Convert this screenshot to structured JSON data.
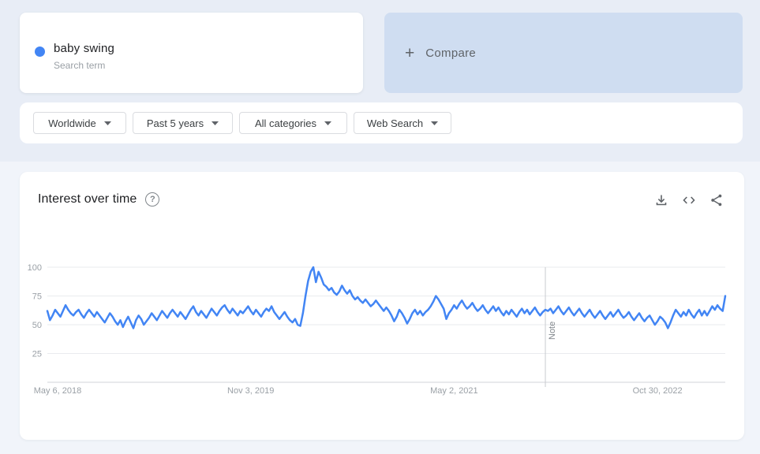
{
  "page_title": "Google Trends explore",
  "term_card": {
    "term": "baby swing",
    "type_label": "Search term",
    "dot_color": "#4285f4"
  },
  "compare_card": {
    "plus": "+",
    "label": "Compare",
    "bg_color": "#cfddf1"
  },
  "filters": [
    {
      "label": "Worldwide"
    },
    {
      "label": "Past 5 years"
    },
    {
      "label": "All categories"
    },
    {
      "label": "Web Search"
    }
  ],
  "chart_card": {
    "title": "Interest over time",
    "help_icon": "help-icon",
    "actions": [
      {
        "icon": "download-icon"
      },
      {
        "icon": "embed-icon"
      },
      {
        "icon": "share-icon"
      }
    ]
  },
  "chart_data": {
    "type": "line",
    "title": "Interest over time",
    "x_unit": "weekly",
    "x_tick_labels": [
      "May 6, 2018",
      "Nov 3, 2019",
      "May 2, 2021",
      "Oct 30, 2022"
    ],
    "x_tick_indices": [
      0,
      78,
      156,
      234
    ],
    "y_ticks": [
      25,
      50,
      75,
      100
    ],
    "ylim": [
      0,
      100
    ],
    "grid": true,
    "legend_position": "none",
    "note_marker": {
      "index": 191,
      "label": "Note"
    },
    "line_color": "#4285f4",
    "grid_color": "#e9ebee",
    "axis_color": "#dadce0",
    "tick_label_color": "#9aa0a6",
    "series": [
      {
        "name": "baby swing",
        "values": [
          62,
          54,
          58,
          63,
          60,
          57,
          62,
          67,
          63,
          60,
          58,
          61,
          63,
          59,
          56,
          60,
          63,
          60,
          57,
          61,
          58,
          55,
          52,
          56,
          60,
          57,
          53,
          50,
          54,
          48,
          53,
          57,
          52,
          47,
          54,
          58,
          55,
          50,
          53,
          56,
          60,
          57,
          54,
          58,
          62,
          59,
          56,
          60,
          63,
          60,
          57,
          61,
          58,
          55,
          59,
          63,
          66,
          61,
          58,
          62,
          59,
          56,
          60,
          64,
          61,
          58,
          62,
          65,
          67,
          63,
          60,
          64,
          61,
          58,
          62,
          60,
          63,
          66,
          62,
          59,
          63,
          60,
          57,
          61,
          64,
          62,
          66,
          61,
          58,
          55,
          58,
          61,
          57,
          54,
          52,
          55,
          50,
          49,
          60,
          75,
          88,
          96,
          100,
          87,
          96,
          91,
          85,
          83,
          80,
          82,
          78,
          76,
          79,
          84,
          80,
          77,
          80,
          75,
          72,
          74,
          71,
          69,
          72,
          69,
          66,
          68,
          71,
          68,
          65,
          62,
          65,
          62,
          58,
          53,
          57,
          63,
          60,
          56,
          51,
          55,
          60,
          63,
          59,
          62,
          58,
          61,
          63,
          66,
          70,
          75,
          72,
          68,
          64,
          55,
          60,
          63,
          67,
          64,
          68,
          71,
          67,
          64,
          66,
          69,
          65,
          62,
          64,
          67,
          63,
          60,
          63,
          66,
          62,
          65,
          61,
          58,
          62,
          59,
          63,
          60,
          57,
          61,
          64,
          60,
          63,
          59,
          62,
          65,
          61,
          58,
          61,
          63,
          62,
          64,
          60,
          63,
          66,
          62,
          59,
          62,
          65,
          61,
          58,
          61,
          64,
          60,
          57,
          60,
          63,
          59,
          56,
          59,
          62,
          58,
          55,
          58,
          61,
          57,
          60,
          63,
          59,
          56,
          58,
          61,
          57,
          54,
          57,
          60,
          56,
          53,
          56,
          58,
          54,
          50,
          53,
          57,
          55,
          52,
          47,
          52,
          58,
          63,
          60,
          57,
          61,
          58,
          63,
          59,
          56,
          60,
          63,
          58,
          62,
          58,
          62,
          66,
          63,
          67,
          64,
          62,
          75
        ]
      }
    ]
  }
}
